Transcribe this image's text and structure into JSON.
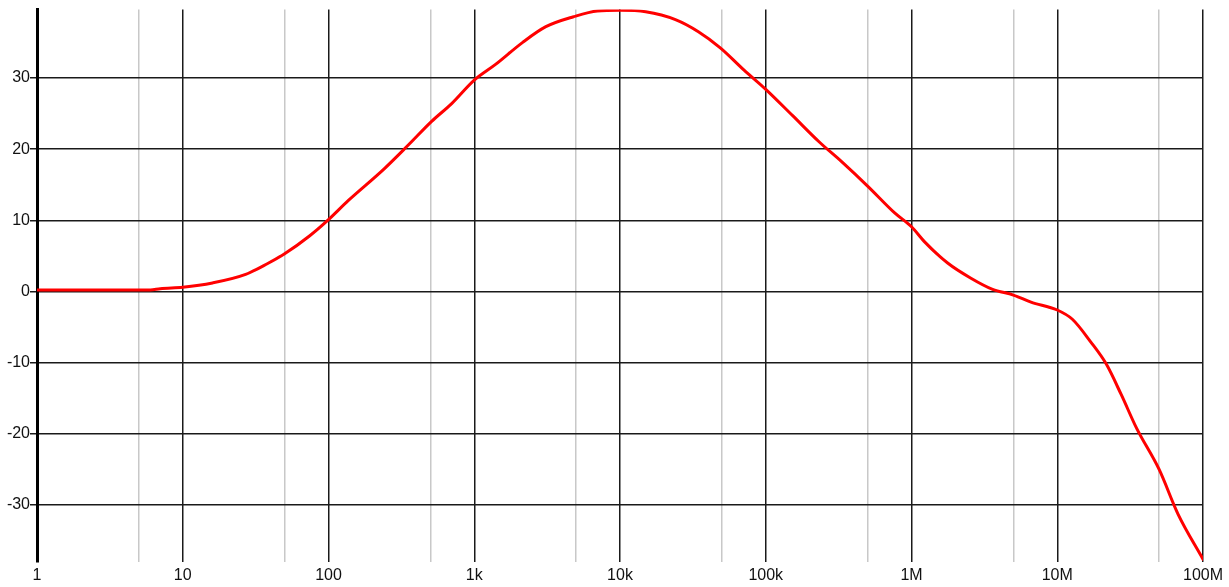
{
  "chart_data": {
    "type": "line",
    "x": [
      1,
      6,
      7,
      10,
      16,
      27,
      38,
      50,
      74,
      100,
      137,
      240,
      350,
      510,
      700,
      1000,
      1400,
      2150,
      3100,
      4800,
      7000,
      10000,
      15000,
      24000,
      34500,
      49000,
      71000,
      100000,
      153000,
      233000,
      333000,
      506000,
      770000,
      1000000,
      1240000,
      1770000,
      2540000,
      3600000,
      5000000,
      6600000,
      10000000,
      12700000,
      17000000,
      21700000,
      27500000,
      35000000,
      50000000,
      67500000,
      100000000
    ],
    "series": [
      {
        "color": "#ff0000",
        "values": [
          0.2,
          0.2,
          0.4,
          0.6,
          1.2,
          2.4,
          3.9,
          5.3,
          7.8,
          10.1,
          12.8,
          17.2,
          20.5,
          23.9,
          26.4,
          29.7,
          31.9,
          35.0,
          37.2,
          38.6,
          39.4,
          39.5,
          39.3,
          38.2,
          36.5,
          34.2,
          31.1,
          28.4,
          24.7,
          21.0,
          18.2,
          14.7,
          11.0,
          9.1,
          6.9,
          4.0,
          1.9,
          0.3,
          -0.5,
          -1.5,
          -2.6,
          -3.9,
          -7.1,
          -10.2,
          -14.5,
          -19.2,
          -25.0,
          -31.3,
          -37.6
        ]
      }
    ],
    "xlim": [
      1,
      100000000
    ],
    "ylim": [
      -38,
      39.6
    ],
    "xticks": [
      1,
      {
        "value": 5,
        "label": null
      },
      10,
      {
        "value": 50,
        "label": null
      },
      100,
      {
        "value": 500,
        "label": null
      },
      {
        "value": 1000,
        "label": "1k"
      },
      {
        "value": 5000,
        "label": null
      },
      {
        "value": 10000,
        "label": "10k"
      },
      {
        "value": 50000,
        "label": null
      },
      {
        "value": 100000,
        "label": "100k"
      },
      {
        "value": 500000,
        "label": null
      },
      {
        "value": 1000000,
        "label": "1M"
      },
      {
        "value": 5000000,
        "label": null
      },
      {
        "value": 10000000,
        "label": "10M"
      },
      {
        "value": 50000000,
        "label": null
      },
      {
        "value": 100000000,
        "label": "100M"
      }
    ],
    "yticks": [
      -30,
      -20,
      -10,
      0,
      10,
      20,
      30
    ],
    "log": "x",
    "grid": true,
    "marker": "none",
    "line_style": "solid"
  }
}
